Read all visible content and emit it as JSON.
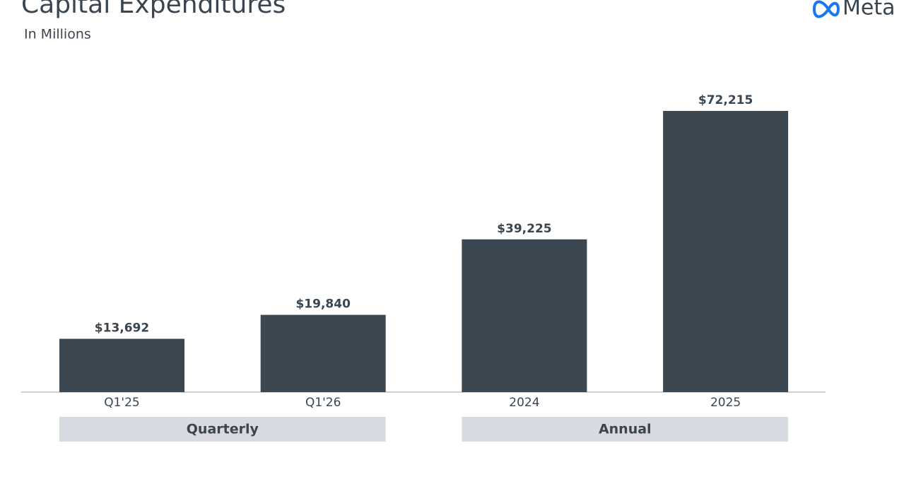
{
  "brand": "Meta",
  "chart_data": {
    "type": "bar",
    "title": "Capital Expenditures",
    "subtitle": "In Millions",
    "categories": [
      "Q1'25",
      "Q1'26",
      "2024",
      "2025"
    ],
    "values": [
      13692,
      19840,
      39225,
      72215
    ],
    "value_labels": [
      "$13,692",
      "$19,840",
      "$39,225",
      "$72,215"
    ],
    "color": "#3b4751",
    "groups": [
      "Quarterly",
      "Annual"
    ]
  }
}
